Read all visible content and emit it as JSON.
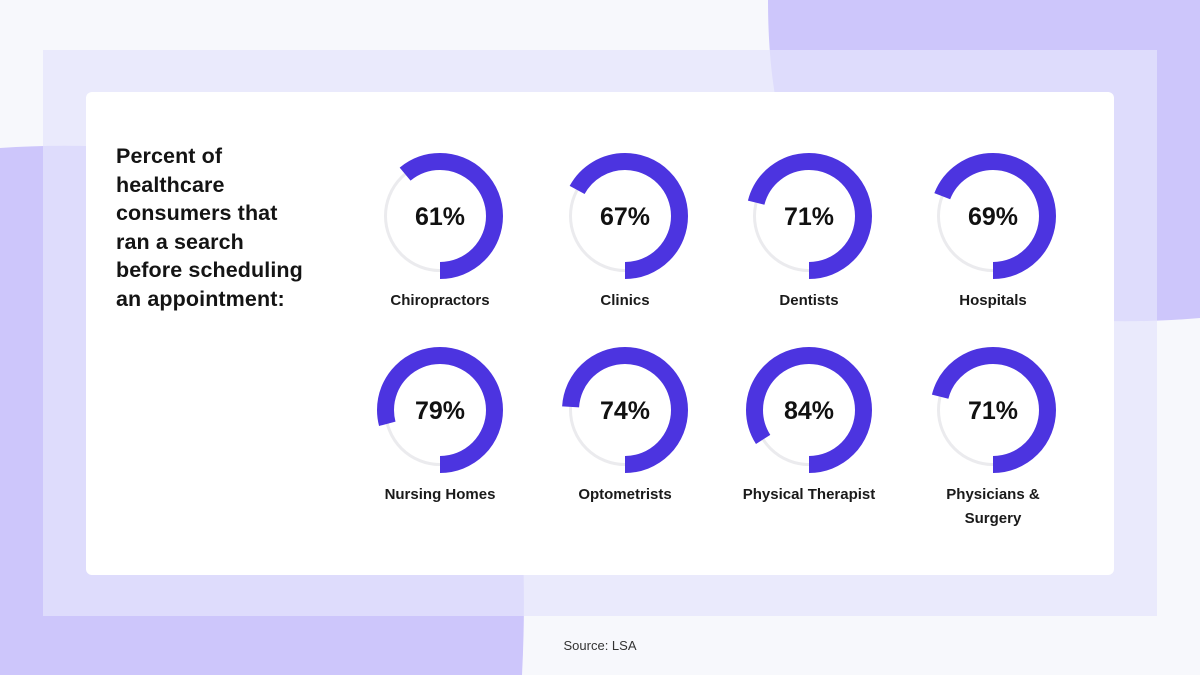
{
  "chart_data": {
    "type": "donut",
    "title": "Percent of healthcare consumers that ran a search before scheduling an appointment:",
    "title_lines": "Percent of\nhealthcare\nconsumers that\nran a search\nbefore scheduling\nan appointment:",
    "unit": "%",
    "categories": [
      "Chiropractors",
      "Clinics",
      "Dentists",
      "Hospitals",
      "Nursing Homes",
      "Optometrists",
      "Physical Therapist",
      "Physicians & Surgery"
    ],
    "values": [
      61,
      67,
      71,
      69,
      79,
      74,
      84,
      71
    ],
    "display_values": [
      "61%",
      "67%",
      "71%",
      "69%",
      "79%",
      "74%",
      "84%",
      "71%"
    ],
    "label_lines": [
      "Chiropractors",
      "Clinics",
      "Dentists",
      "Hospitals",
      "Nursing Homes",
      "Optometrists",
      "Physical Therapist",
      "Physicians &\nSurgery"
    ]
  },
  "colors": {
    "accent": "#4c34e0",
    "track": "#ebebee",
    "background_blob": "#cdc6fb"
  },
  "footer": {
    "source": "Source: LSA"
  }
}
